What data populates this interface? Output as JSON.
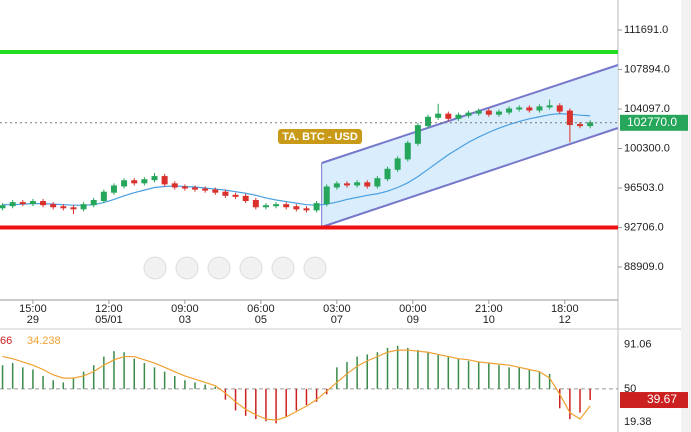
{
  "chart_data": [
    {
      "type": "candlestick",
      "annotation": "TA. BTC - USD",
      "xlim": [
        -19.5,
        346.5
      ],
      "ylim": [
        85736,
        114575
      ],
      "yticks": [
        {
          "value": 111691,
          "label": "111691.0"
        },
        {
          "value": 107894,
          "label": "107894.0"
        },
        {
          "value": 104097,
          "label": "104097.0"
        },
        {
          "value": 100300,
          "label": "100300.0"
        },
        {
          "value": 96503,
          "label": "96503.0"
        },
        {
          "value": 92706,
          "label": "92706.0"
        },
        {
          "value": 88909,
          "label": "88909.0"
        }
      ],
      "xticks": [
        {
          "value": 0,
          "label": "15:00",
          "date": "29"
        },
        {
          "value": 45,
          "label": "12:00",
          "date": "05/01"
        },
        {
          "value": 90,
          "label": "09:00",
          "date": "03"
        },
        {
          "value": 135,
          "label": "06:00",
          "date": "05"
        },
        {
          "value": 180,
          "label": "03:00",
          "date": "07"
        },
        {
          "value": 225,
          "label": "00:00",
          "date": "09"
        },
        {
          "value": 270,
          "label": "21:00",
          "date": "10"
        },
        {
          "value": 315,
          "label": "18:00",
          "date": "12"
        }
      ],
      "up_color": "#26a65b",
      "down_color": "#d9302c",
      "x": [
        -18,
        -12,
        -6,
        0,
        6,
        12,
        18,
        24,
        30,
        36,
        42,
        48,
        54,
        60,
        66,
        72,
        78,
        84,
        90,
        96,
        102,
        108,
        114,
        120,
        126,
        132,
        138,
        144,
        150,
        156,
        162,
        168,
        174,
        180,
        186,
        192,
        198,
        204,
        210,
        216,
        222,
        228,
        234,
        240,
        246,
        252,
        258,
        264,
        270,
        276,
        282,
        288,
        294,
        300,
        306,
        312,
        318,
        324,
        330
      ],
      "open": [
        94600,
        94800,
        95100,
        95000,
        95200,
        94900,
        94700,
        94600,
        94500,
        94900,
        95300,
        96100,
        96700,
        97200,
        97000,
        97300,
        97600,
        96900,
        96600,
        96500,
        96400,
        96300,
        96100,
        95800,
        95700,
        95300,
        94700,
        94800,
        94900,
        94700,
        94500,
        94400,
        95000,
        96600,
        96900,
        96800,
        97000,
        96700,
        97400,
        98300,
        99300,
        100800,
        102500,
        103300,
        103600,
        103200,
        103500,
        103700,
        103900,
        103600,
        103800,
        104100,
        104200,
        104000,
        104300,
        104400,
        103900,
        102600,
        102500
      ],
      "high": [
        95050,
        95350,
        95350,
        95450,
        95450,
        95150,
        94950,
        94850,
        95150,
        95550,
        96350,
        96950,
        97450,
        97450,
        97550,
        97950,
        97850,
        97150,
        96850,
        96750,
        96650,
        96550,
        96350,
        96050,
        95950,
        95550,
        95050,
        95150,
        95150,
        94950,
        94750,
        95250,
        96850,
        97150,
        97150,
        97250,
        97250,
        97650,
        98550,
        99550,
        101050,
        102750,
        103550,
        104600,
        103850,
        103750,
        103950,
        104150,
        104150,
        104050,
        104350,
        104450,
        104450,
        104550,
        105000,
        104650,
        104150,
        102850,
        103020
      ],
      "low": [
        94350,
        94550,
        94750,
        94750,
        94650,
        94450,
        94350,
        94000,
        94250,
        94650,
        95050,
        95850,
        96450,
        96750,
        96750,
        97050,
        96650,
        96350,
        96250,
        96150,
        96050,
        95850,
        95550,
        95450,
        95050,
        94450,
        94450,
        94550,
        94450,
        94250,
        94150,
        94150,
        94750,
        96350,
        96550,
        96550,
        96450,
        96450,
        97150,
        98050,
        99050,
        100550,
        102250,
        103050,
        102950,
        102950,
        103250,
        103450,
        103350,
        103350,
        103550,
        103850,
        103750,
        103750,
        104050,
        103650,
        100900,
        102250,
        102250
      ],
      "close": [
        94800,
        95100,
        95000,
        95200,
        94900,
        94700,
        94600,
        94500,
        94900,
        95300,
        96100,
        96700,
        97200,
        97000,
        97300,
        97600,
        96900,
        96600,
        96500,
        96400,
        96300,
        96100,
        95800,
        95700,
        95300,
        94700,
        94800,
        94900,
        94700,
        94500,
        94400,
        95000,
        96600,
        96900,
        96800,
        97000,
        96700,
        97400,
        98300,
        99300,
        100800,
        102500,
        103300,
        103600,
        103200,
        103500,
        103700,
        103900,
        103600,
        103800,
        104100,
        104200,
        104000,
        104300,
        104400,
        103900,
        102600,
        102500,
        102770
      ],
      "ma": {
        "color": "#4a9fe0",
        "values": [
          94900,
          94900,
          94950,
          95000,
          95000,
          94950,
          94900,
          94850,
          94850,
          94900,
          95100,
          95400,
          95750,
          96050,
          96300,
          96550,
          96650,
          96700,
          96650,
          96600,
          96500,
          96400,
          96300,
          96150,
          96000,
          95800,
          95550,
          95350,
          95200,
          95050,
          94900,
          94850,
          94950,
          95150,
          95400,
          95600,
          95800,
          95950,
          96200,
          96550,
          97000,
          97600,
          98300,
          99000,
          99700,
          100300,
          100900,
          101400,
          101850,
          102250,
          102600,
          102900,
          103150,
          103350,
          103550,
          103650,
          103600,
          103500,
          103450
        ]
      },
      "hlines": [
        {
          "value": 109576,
          "color": "#22dd22"
        },
        {
          "value": 92706,
          "color": "#ee1111"
        }
      ],
      "channel": {
        "x": [
          171,
          346.5
        ],
        "upper": [
          98906,
          108327
        ],
        "lower": [
          92754,
          102270
        ],
        "color": "#7777cc",
        "fill": "#cfe8fb"
      },
      "last_price": {
        "value": 102770,
        "label": "102770.0",
        "color": "#26a65b"
      }
    },
    {
      "type": "oscillator",
      "ylim": [
        10,
        100
      ],
      "yticks": [
        91.06,
        50,
        19.38
      ],
      "baseline": 50,
      "series": [
        {
          "label": "66",
          "color": "#cc2020",
          "up_color": "#3a8a4a",
          "down_color": "#cc2020",
          "values": [
            72,
            74,
            70,
            68,
            62,
            58,
            56,
            60,
            66,
            72,
            80,
            85,
            84,
            78,
            74,
            70,
            66,
            62,
            58,
            56,
            54,
            52,
            40,
            30,
            25,
            22,
            20,
            18,
            24,
            30,
            35,
            38,
            45,
            70,
            75,
            80,
            82,
            84,
            88,
            90,
            88,
            86,
            84,
            82,
            80,
            78,
            76,
            75,
            74,
            72,
            70,
            70,
            68,
            66,
            64,
            32,
            22,
            28,
            39.67
          ]
        },
        {
          "color": "#f0a030",
          "values": [
            80,
            78,
            75,
            72,
            68,
            63,
            60,
            60,
            62,
            66,
            72,
            77,
            80,
            80,
            77,
            74,
            70,
            66,
            62,
            59,
            56,
            53,
            46,
            38,
            31,
            26,
            22,
            21,
            24,
            29,
            34,
            40,
            48,
            56,
            64,
            71,
            76,
            80,
            84,
            86,
            86,
            85,
            84,
            82,
            80,
            78,
            77,
            75,
            74,
            73,
            72,
            70,
            68,
            66,
            60,
            45,
            28,
            22,
            34.238
          ]
        }
      ]
    }
  ]
}
